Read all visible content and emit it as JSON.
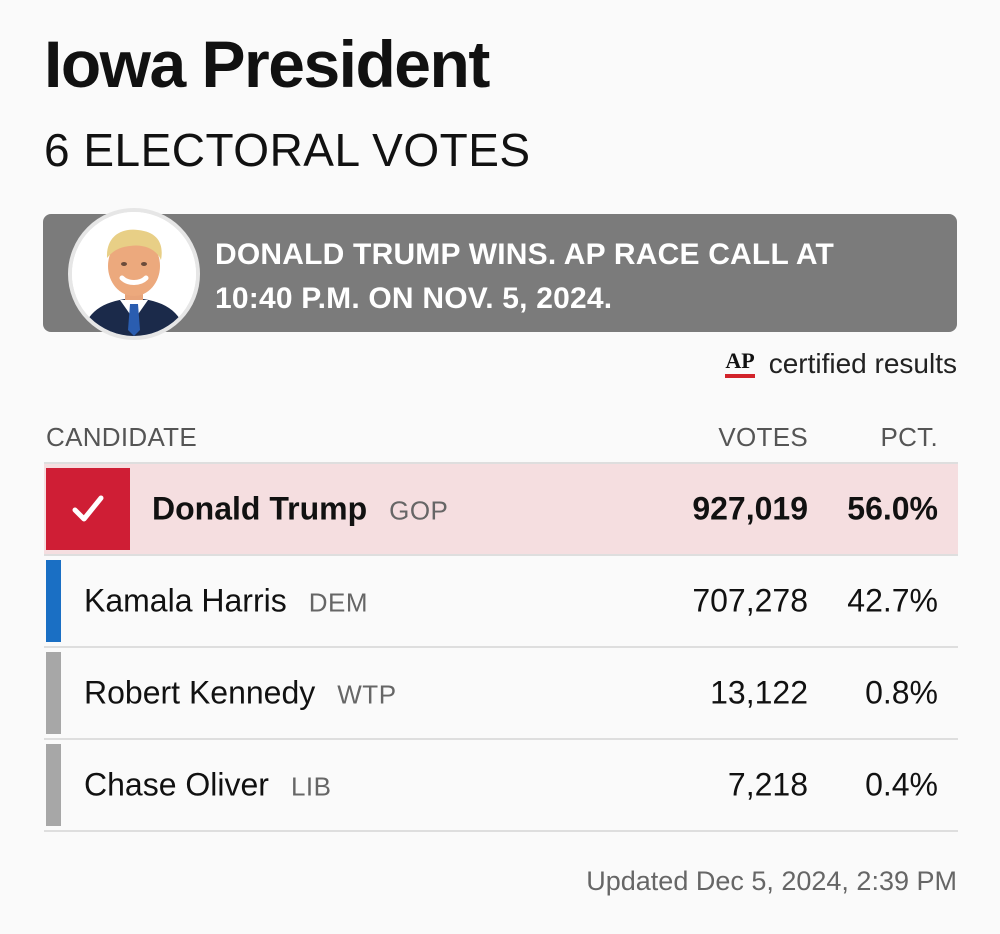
{
  "header": {
    "title": "Iowa President",
    "subtitle": "6 ELECTORAL VOTES"
  },
  "banner": {
    "text": "DONALD TRUMP WINS. AP RACE CALL AT 10:40 P.M. ON NOV. 5, 2024.",
    "photo_icon": "candidate-photo"
  },
  "certification": {
    "logo_text": "AP",
    "label": "certified results"
  },
  "table": {
    "headers": {
      "candidate": "CANDIDATE",
      "votes": "VOTES",
      "pct": "PCT."
    },
    "rows": [
      {
        "name": "Donald Trump",
        "party": "GOP",
        "votes": "927,019",
        "pct": "56.0%",
        "winner": true,
        "color": "#cf1e35"
      },
      {
        "name": "Kamala Harris",
        "party": "DEM",
        "votes": "707,278",
        "pct": "42.7%",
        "winner": false,
        "color": "#1a6fc4"
      },
      {
        "name": "Robert Kennedy",
        "party": "WTP",
        "votes": "13,122",
        "pct": "0.8%",
        "winner": false,
        "color": "#a7a7a7"
      },
      {
        "name": "Chase Oliver",
        "party": "LIB",
        "votes": "7,218",
        "pct": "0.4%",
        "winner": false,
        "color": "#a7a7a7"
      }
    ]
  },
  "footer": {
    "updated": "Updated Dec 5, 2024, 2:39 PM"
  }
}
